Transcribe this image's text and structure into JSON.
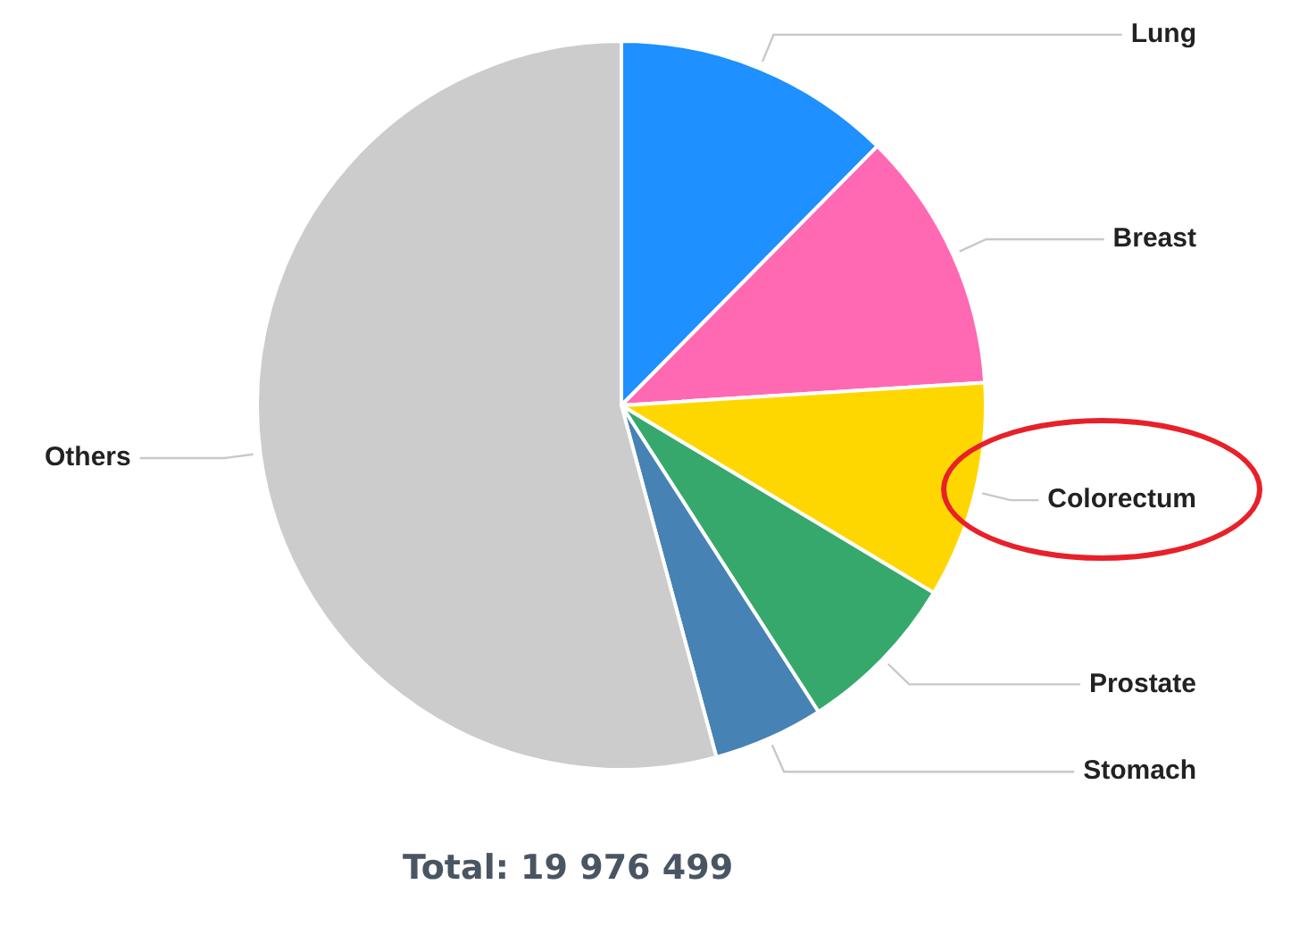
{
  "chart_data": {
    "type": "pie",
    "categories": [
      "Lung",
      "Breast",
      "Colorectum",
      "Prostate",
      "Stomach",
      "Others"
    ],
    "values": [
      12.4,
      11.6,
      9.6,
      7.3,
      4.9,
      54.2
    ],
    "colors": [
      "#1e90ff",
      "#ff69b4",
      "#ffd700",
      "#36a86c",
      "#4682b4",
      "#cccccc"
    ],
    "legend": false,
    "annotations": [
      "Total: 19 976 499"
    ]
  }
}
